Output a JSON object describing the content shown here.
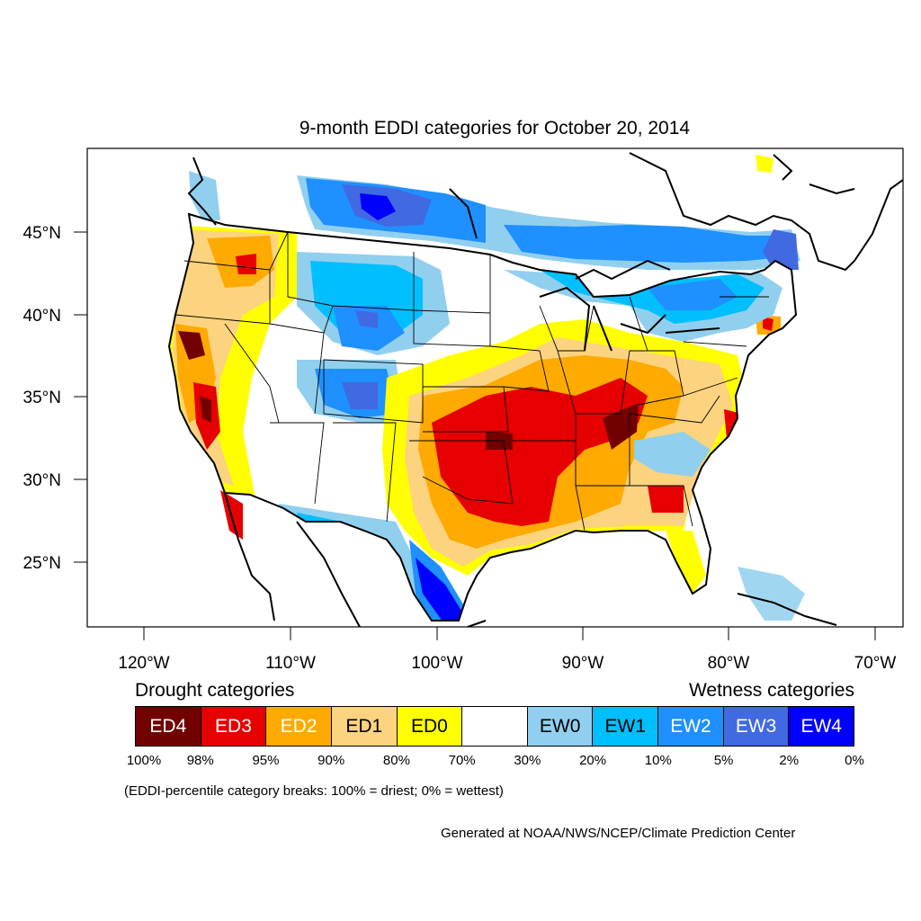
{
  "title": "9-month EDDI categories for October 20, 2014",
  "axes": {
    "lon_labels": [
      "120°W",
      "110°W",
      "100°W",
      "90°W",
      "80°W",
      "70°W"
    ],
    "lat_labels": [
      "45°N",
      "40°N",
      "35°N",
      "30°N",
      "25°N"
    ],
    "lon_range": [
      -124,
      -68.5
    ],
    "lat_range": [
      21,
      50
    ]
  },
  "legend": {
    "drought_label": "Drought categories",
    "wetness_label": "Wetness categories",
    "categories": [
      {
        "label": "ED4",
        "color": "#730000",
        "text_color": "#ffffff"
      },
      {
        "label": "ED3",
        "color": "#e60000",
        "text_color": "#ffffff"
      },
      {
        "label": "ED2",
        "color": "#ffaa00",
        "text_color": "#ffffff"
      },
      {
        "label": "ED1",
        "color": "#fcd37f",
        "text_color": "#000000"
      },
      {
        "label": "ED0",
        "color": "#ffff00",
        "text_color": "#000000"
      },
      {
        "label": "",
        "color": "#ffffff",
        "text_color": "#000000"
      },
      {
        "label": "EW0",
        "color": "#91cfef",
        "text_color": "#000000"
      },
      {
        "label": "EW1",
        "color": "#00bfff",
        "text_color": "#000000"
      },
      {
        "label": "EW2",
        "color": "#1e90ff",
        "text_color": "#ffffff"
      },
      {
        "label": "EW3",
        "color": "#4169e1",
        "text_color": "#ffffff"
      },
      {
        "label": "EW4",
        "color": "#0000ff",
        "text_color": "#ffffff"
      }
    ],
    "percentiles": [
      "100%",
      "98%",
      "95%",
      "90%",
      "80%",
      "70%",
      "30%",
      "20%",
      "10%",
      "5%",
      "2%",
      "0%"
    ]
  },
  "note": "(EDDI-percentile category breaks: 100% = driest; 0% = wettest)",
  "credit": "Generated at NOAA/NWS/NCEP/Climate Prediction Center"
}
